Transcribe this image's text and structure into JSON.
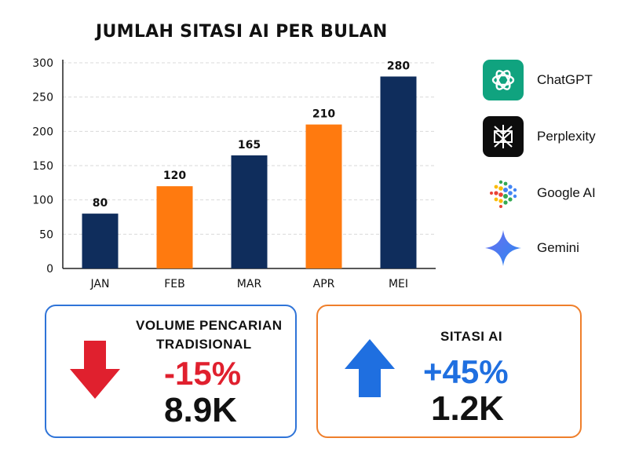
{
  "chart_data": {
    "type": "bar",
    "title": "JUMLAH SITASI AI PER BULAN",
    "categories": [
      "JAN",
      "FEB",
      "MAR",
      "APR",
      "MEI"
    ],
    "values": [
      80,
      120,
      165,
      210,
      280
    ],
    "data_labels": [
      "80",
      "120",
      "165",
      "210",
      "280"
    ],
    "bar_colors": [
      "#0f2d5c",
      "#ff7a0f",
      "#0f2d5c",
      "#ff7a0f",
      "#0f2d5c"
    ],
    "yticks": [
      "0",
      "50",
      "100",
      "150",
      "200",
      "250",
      "300"
    ],
    "ylim": [
      0,
      300
    ],
    "grid": true,
    "xlabel": "",
    "ylabel": ""
  },
  "legend": {
    "placement": "right",
    "items": [
      {
        "label": "ChatGPT",
        "icon": "chatgpt-icon",
        "color": "#10a37f"
      },
      {
        "label": "Perplexity",
        "icon": "perplexity-icon",
        "color": "#111111"
      },
      {
        "label": "Google AI",
        "icon": "google-ai-icon",
        "color": "#4285f4"
      },
      {
        "label": "Gemini",
        "icon": "gemini-icon",
        "color": "#4a7cf0"
      }
    ]
  },
  "cards": {
    "left": {
      "heading_line1": "VOLUME PENCARIAN",
      "heading_line2": "TRADISIONAL",
      "percent": "-15%",
      "value": "8.9K",
      "accent": "#e0202e",
      "border": "#2f74d8",
      "icon": "arrow-down-icon"
    },
    "right": {
      "heading": "SITASI AI",
      "percent": "+45%",
      "value": "1.2K",
      "accent": "#1f6fe0",
      "border": "#ef7f2b",
      "icon": "arrow-up-icon"
    }
  }
}
